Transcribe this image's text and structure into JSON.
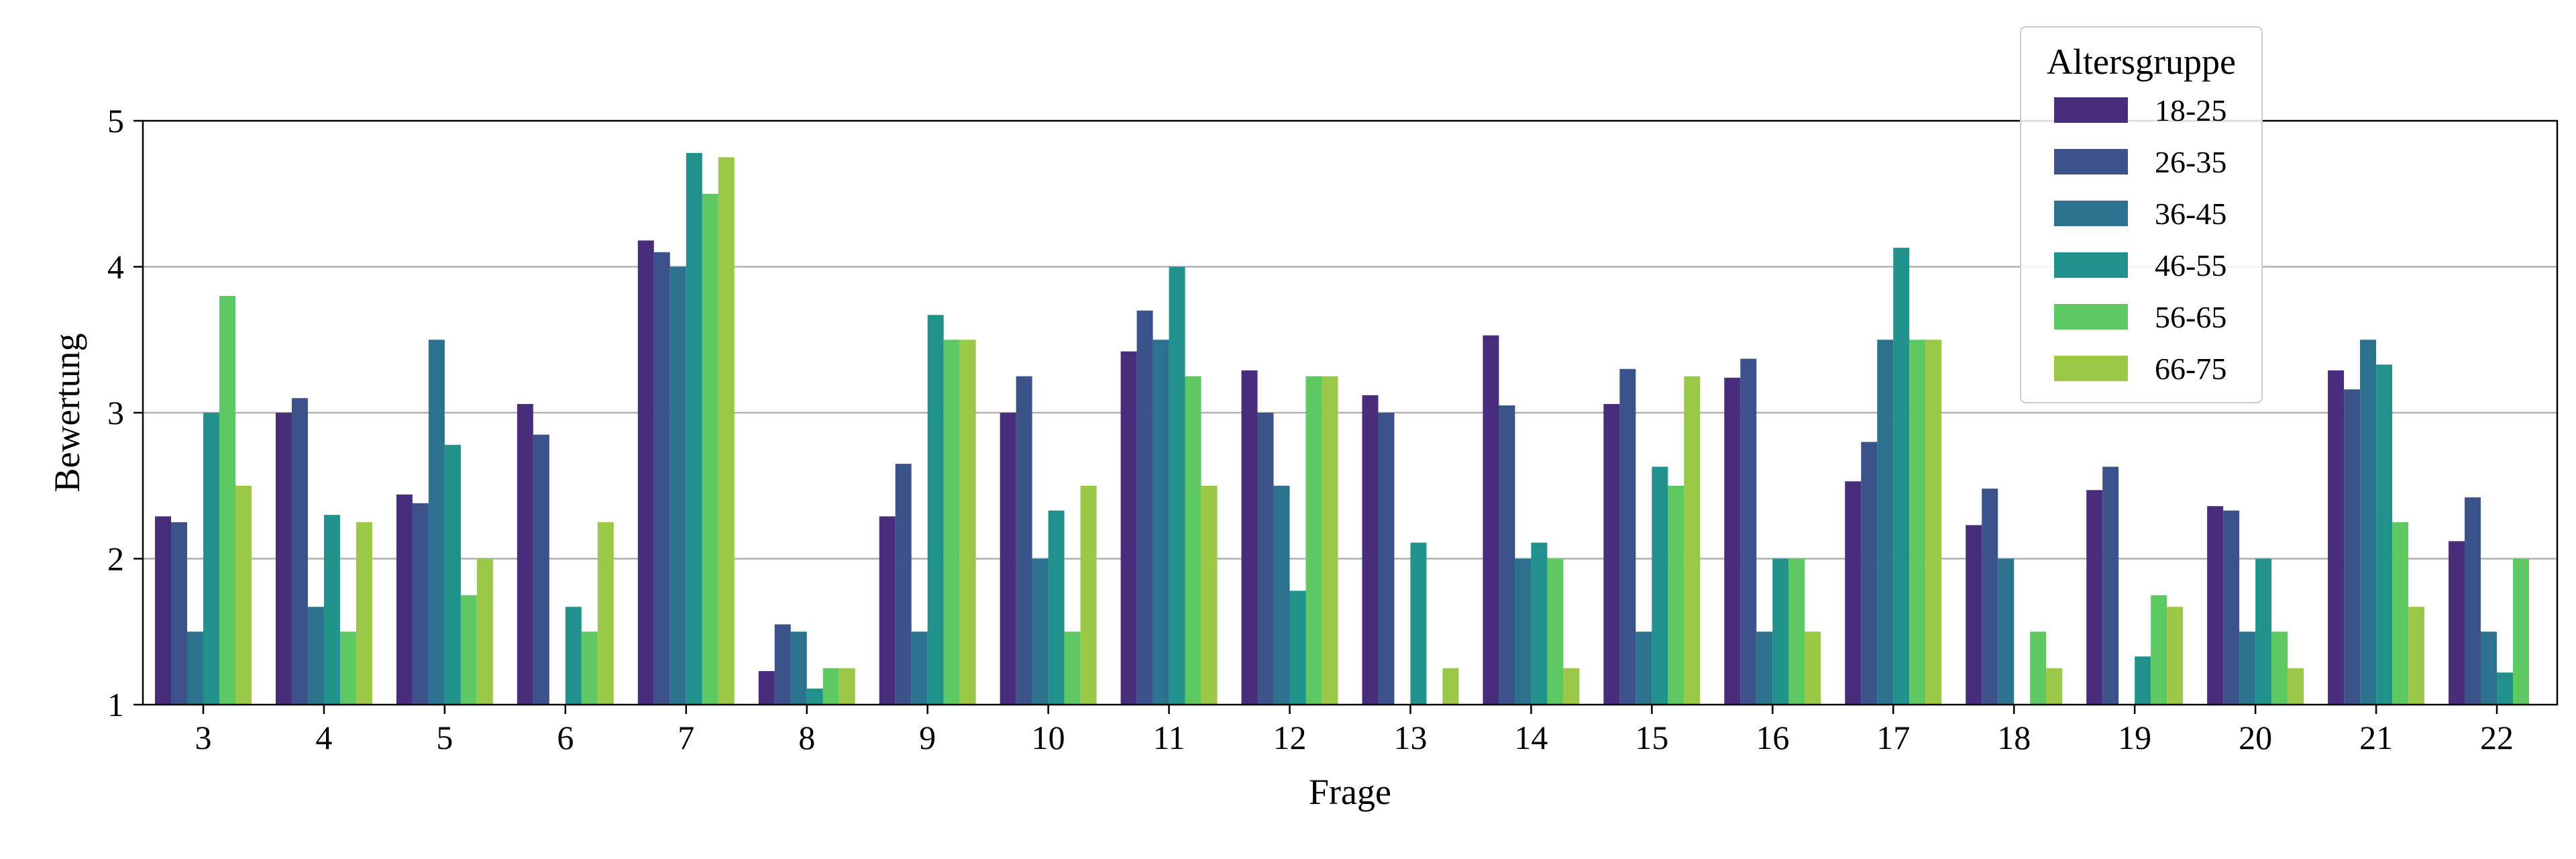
{
  "chart_data": {
    "type": "bar",
    "title": "",
    "xlabel": "Frage",
    "ylabel": "Bewertung",
    "ylim": [
      1,
      5
    ],
    "yticks": [
      1,
      2,
      3,
      4,
      5
    ],
    "grid": "y",
    "legend": {
      "title": "Altersgruppe",
      "position": "top-right"
    },
    "categories": [
      "3",
      "4",
      "5",
      "6",
      "7",
      "8",
      "9",
      "10",
      "11",
      "12",
      "13",
      "14",
      "15",
      "16",
      "17",
      "18",
      "19",
      "20",
      "21",
      "22"
    ],
    "series": [
      {
        "name": "18-25",
        "color": "#472d7b",
        "values": [
          2.29,
          3.0,
          2.44,
          3.06,
          4.18,
          1.23,
          2.29,
          3.0,
          3.42,
          3.29,
          3.12,
          3.53,
          3.06,
          3.24,
          2.53,
          2.23,
          2.47,
          2.36,
          3.29,
          2.12
        ]
      },
      {
        "name": "26-35",
        "color": "#3b528b",
        "values": [
          2.25,
          3.1,
          2.38,
          2.85,
          4.1,
          1.55,
          2.65,
          3.25,
          3.7,
          3.0,
          3.0,
          3.05,
          3.3,
          3.37,
          2.8,
          2.48,
          2.63,
          2.33,
          3.16,
          2.42
        ]
      },
      {
        "name": "36-45",
        "color": "#2c728e",
        "values": [
          1.5,
          1.67,
          3.5,
          1.0,
          4.0,
          1.5,
          1.5,
          2.0,
          3.5,
          2.5,
          1.0,
          2.0,
          1.5,
          1.5,
          3.5,
          2.0,
          1.0,
          1.5,
          3.5,
          1.5
        ]
      },
      {
        "name": "46-55",
        "color": "#21918c",
        "values": [
          3.0,
          2.3,
          2.78,
          1.67,
          4.78,
          1.11,
          3.67,
          2.33,
          4.0,
          1.78,
          2.11,
          2.11,
          2.63,
          2.0,
          4.13,
          1.0,
          1.33,
          2.0,
          3.33,
          1.22
        ]
      },
      {
        "name": "56-65",
        "color": "#5ec962",
        "values": [
          3.8,
          1.5,
          1.75,
          1.5,
          4.5,
          1.25,
          3.5,
          1.5,
          3.25,
          3.25,
          1.0,
          2.0,
          2.5,
          2.0,
          3.5,
          1.5,
          1.75,
          1.5,
          2.25,
          2.0
        ]
      },
      {
        "name": "66-75",
        "color": "#9bc846",
        "values": [
          2.5,
          2.25,
          2.0,
          2.25,
          4.75,
          1.25,
          3.5,
          2.5,
          2.5,
          3.25,
          1.25,
          1.25,
          3.25,
          1.5,
          3.5,
          1.25,
          1.67,
          1.25,
          1.67,
          1.0
        ]
      }
    ]
  }
}
